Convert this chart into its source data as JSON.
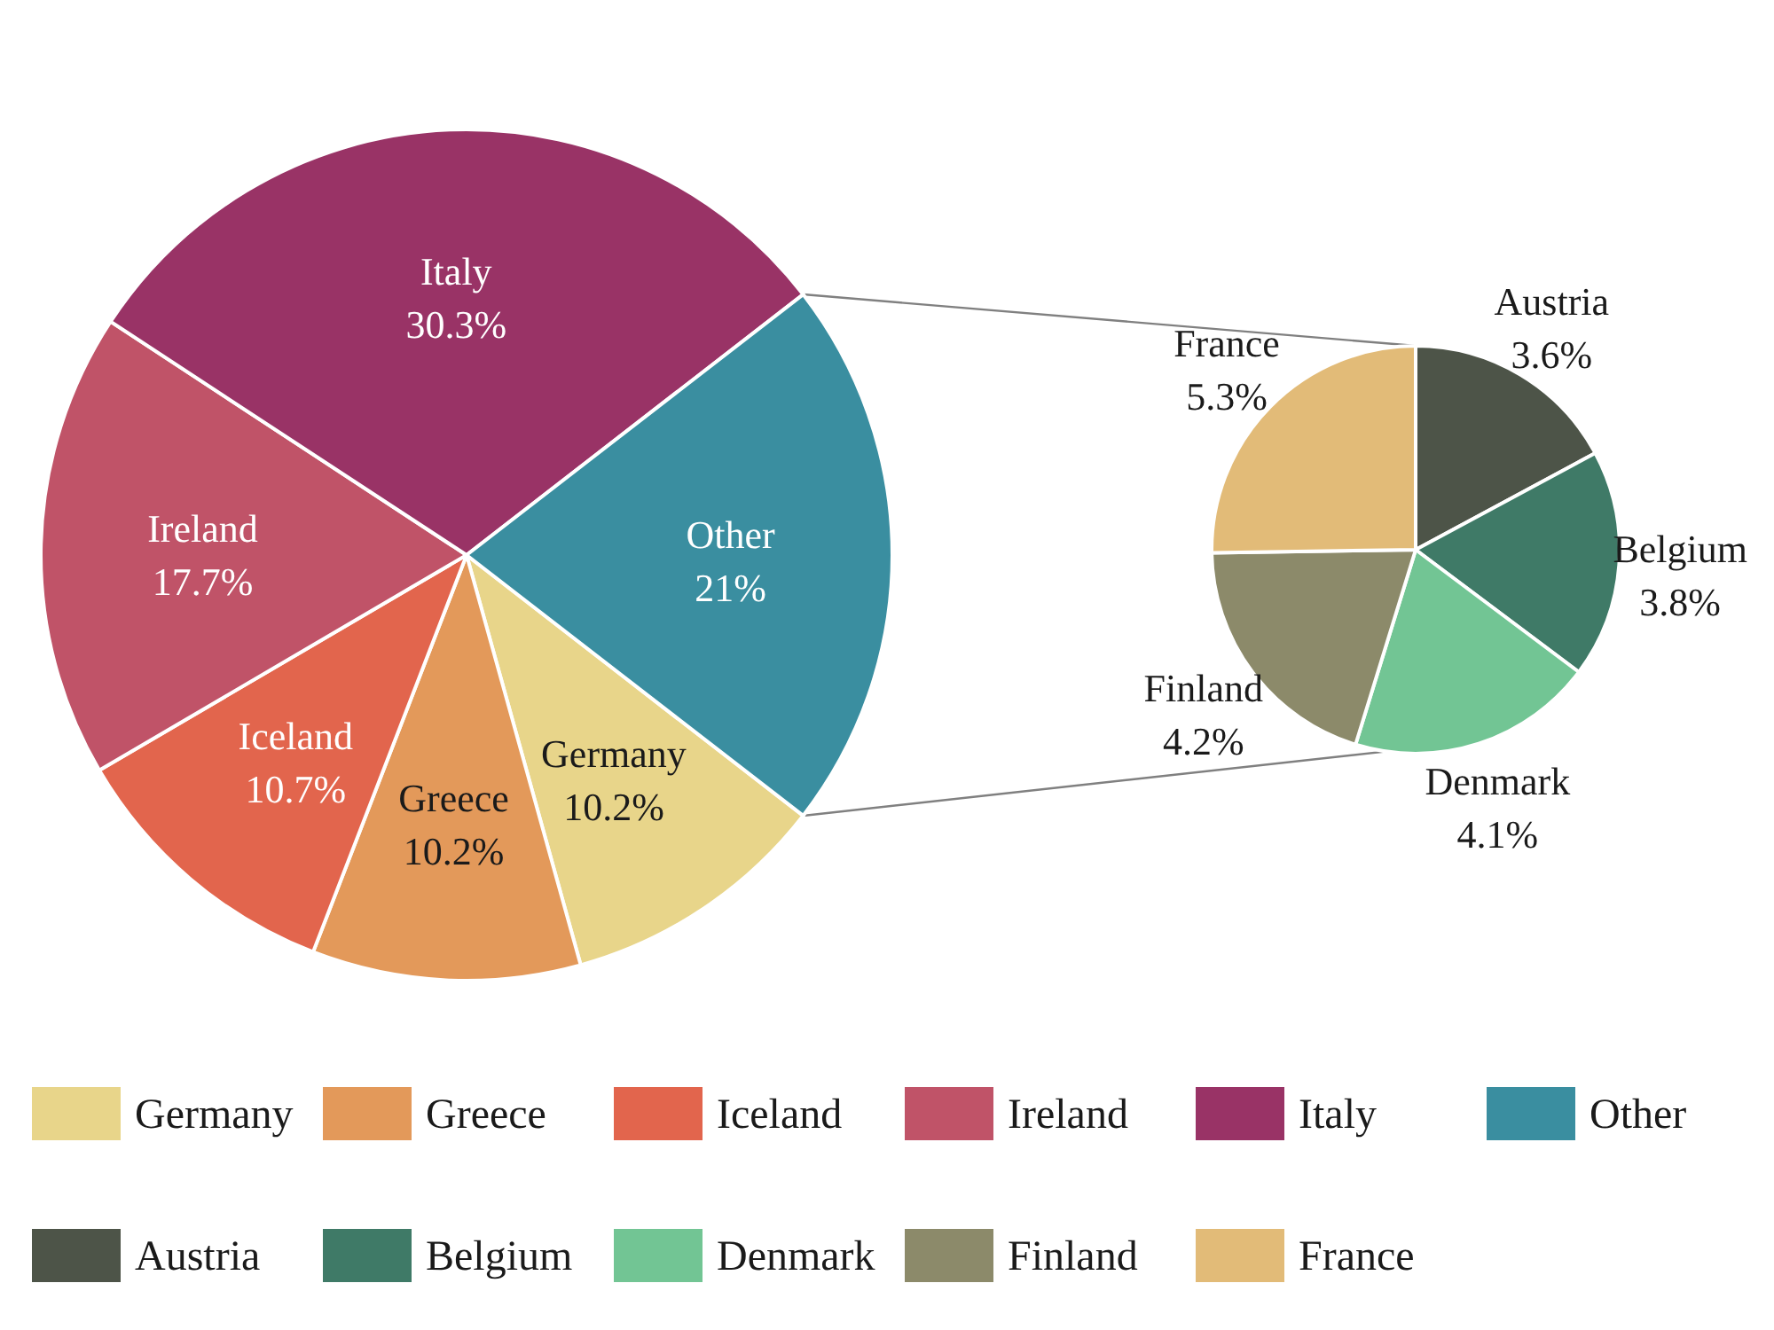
{
  "chart_data": [
    {
      "type": "pie",
      "categories": [
        "Germany",
        "Greece",
        "Iceland",
        "Ireland",
        "Italy",
        "Other"
      ],
      "values": [
        10.2,
        10.2,
        10.7,
        17.7,
        30.3,
        21
      ],
      "value_labels": [
        "10.2%",
        "10.2%",
        "10.7%",
        "17.7%",
        "30.3%",
        "21%"
      ],
      "colors": [
        "#e8d58a",
        "#e3995a",
        "#e2654d",
        "#c05368",
        "#993366",
        "#3a8ea0"
      ],
      "legend": "bottom"
    },
    {
      "type": "pie",
      "categories": [
        "Austria",
        "Belgium",
        "Denmark",
        "Finland",
        "France"
      ],
      "values": [
        3.6,
        3.8,
        4.1,
        4.2,
        5.3
      ],
      "value_labels": [
        "3.6%",
        "3.8%",
        "4.1%",
        "4.2%",
        "5.3%"
      ],
      "colors": [
        "#4d5448",
        "#3f7a67",
        "#72c594",
        "#8c8a6a",
        "#e2bb78"
      ],
      "legend": "bottom"
    }
  ]
}
